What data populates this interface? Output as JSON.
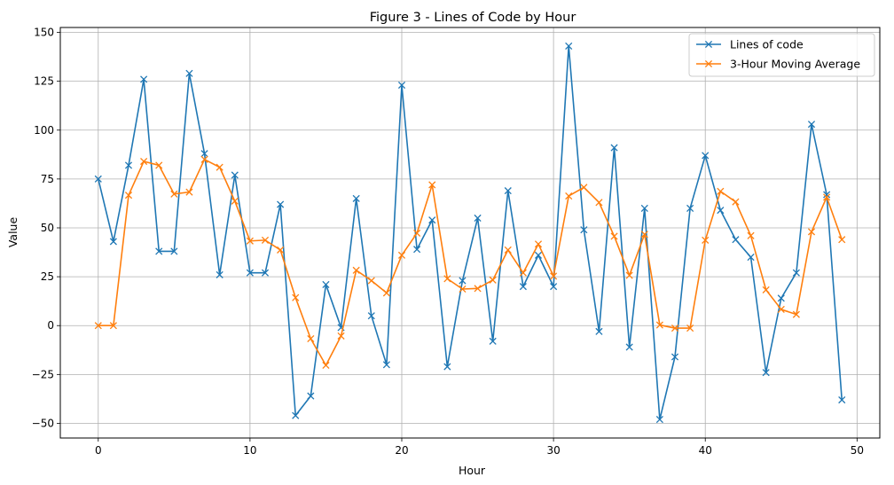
{
  "chart_data": {
    "type": "line",
    "title": "Figure 3 - Lines of Code by Hour",
    "xlabel": "Hour",
    "ylabel": "Value",
    "xlim": [
      -2.5,
      51.5
    ],
    "ylim": [
      -57.5,
      152.5
    ],
    "xticks": [
      0,
      10,
      20,
      30,
      40,
      50
    ],
    "yticks": [
      -50,
      -25,
      0,
      25,
      50,
      75,
      100,
      125,
      150
    ],
    "grid": true,
    "legend_position": "top-right",
    "x": [
      0,
      1,
      2,
      3,
      4,
      5,
      6,
      7,
      8,
      9,
      10,
      11,
      12,
      13,
      14,
      15,
      16,
      17,
      18,
      19,
      20,
      21,
      22,
      23,
      24,
      25,
      26,
      27,
      28,
      29,
      30,
      31,
      32,
      33,
      34,
      35,
      36,
      37,
      38,
      39,
      40,
      41,
      42,
      43,
      44,
      45,
      46,
      47,
      48,
      49
    ],
    "series": [
      {
        "name": "Lines of code",
        "color": "#1f77b4",
        "marker": "x",
        "values": [
          75,
          43,
          82,
          126,
          38,
          38,
          129,
          88,
          26,
          77,
          27,
          27,
          62,
          -46,
          -36,
          21,
          -1,
          65,
          5,
          -20,
          123,
          39,
          54,
          -21,
          23,
          55,
          -8,
          69,
          20,
          36,
          20,
          143,
          49,
          -3,
          91,
          -11,
          60,
          -48,
          -16,
          60,
          87,
          59,
          44,
          35,
          -24,
          14,
          27,
          103,
          67,
          -38
        ]
      },
      {
        "name": "3-Hour Moving Average",
        "color": "#ff7f0e",
        "marker": "x",
        "values": [
          0,
          0,
          66.7,
          84,
          82,
          67.3,
          68.3,
          85,
          81,
          63.7,
          43.3,
          43.7,
          38.7,
          14.3,
          -6.7,
          -20.3,
          -5.3,
          28.3,
          23,
          16.7,
          36,
          47.3,
          72,
          24,
          18.7,
          19,
          23.3,
          38.7,
          27,
          41.7,
          25.3,
          66.3,
          70.7,
          63,
          45.7,
          25.7,
          46.7,
          0.3,
          -1.3,
          -1.3,
          43.7,
          68.7,
          63.3,
          46,
          18.3,
          8.3,
          5.7,
          48,
          65.7,
          44
        ]
      }
    ]
  }
}
